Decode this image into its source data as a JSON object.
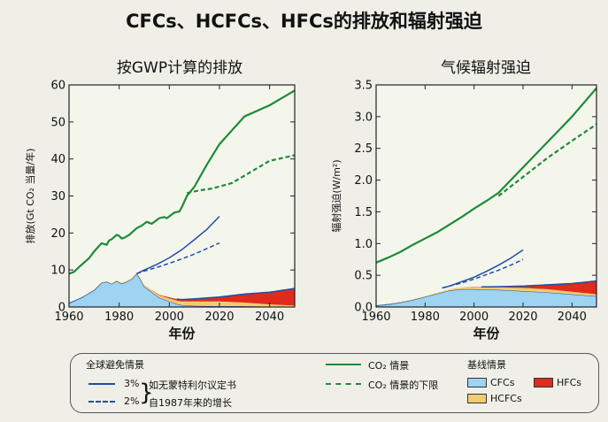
{
  "title": "CFCs、HCFCs、HFCs的排放和辐射强迫",
  "colors": {
    "plot_bg": "#f4f6ec",
    "co2": "#1e8a3a",
    "cfcs": "#9ed3f2",
    "hcfcs": "#f2cc70",
    "hfcs": "#e02a1c",
    "proj": "#1f4ea8"
  },
  "legend": {
    "avoided_heading": "全球避免情景",
    "pct3": "3%",
    "pct2": "2%",
    "brace": "}",
    "montreal": "如无蒙特利尔议定书",
    "growth": "自1987年来的增长",
    "co2_scenario": "CO₂ 情景",
    "co2_lower": "CO₂ 情景的下限",
    "baseline_heading": "基线情景",
    "cfcs": "CFCs",
    "hfcs": "HFCs",
    "hcfcs": "HCFCs"
  },
  "chart_data": [
    {
      "type": "area",
      "title": "按GWP计算的排放",
      "xlabel": "年份",
      "ylabel": "排放(Gt CO₂ 当量/年)",
      "xlim": [
        1960,
        2050
      ],
      "ylim": [
        0,
        60
      ],
      "xticks": [
        1960,
        1980,
        2000,
        2020,
        2040
      ],
      "yticks": [
        0,
        10,
        20,
        30,
        40,
        50,
        60
      ],
      "xtick_labels": [
        "1960",
        "1980",
        "2000",
        "2020",
        "2040"
      ],
      "ytick_labels": [
        "0",
        "10",
        "20",
        "30",
        "40",
        "50",
        "60"
      ],
      "series": [
        {
          "name": "CO₂ 情景",
          "style": "solid",
          "color": "#1e8a3a",
          "x": [
            1960,
            1962,
            1964,
            1966,
            1968,
            1970,
            1972,
            1973,
            1975,
            1976,
            1977,
            1979,
            1980,
            1981,
            1982,
            1984,
            1986,
            1987,
            1989,
            1990,
            1991,
            1993,
            1994,
            1996,
            1998,
            1999,
            2000,
            2001,
            2002,
            2004,
            2005,
            2007,
            2010,
            2015,
            2020,
            2030,
            2040,
            2050
          ],
          "y": [
            9,
            9.5,
            10.8,
            12,
            13.2,
            15,
            16.5,
            17.2,
            16.8,
            18,
            18.3,
            19.5,
            19.2,
            18.5,
            18.7,
            19.5,
            20.7,
            21.3,
            22,
            22.5,
            23,
            22.5,
            23,
            24,
            24.3,
            24,
            24.5,
            25,
            25.5,
            25.8,
            27,
            30,
            32.5,
            38.5,
            44,
            51.5,
            54.5,
            58.5
          ]
        },
        {
          "name": "CO₂ 情景的下限",
          "style": "dashed",
          "color": "#1e8a3a",
          "x": [
            2007,
            2012,
            2017,
            2025,
            2030,
            2040,
            2050
          ],
          "y": [
            30.8,
            31.5,
            32,
            33.5,
            35.5,
            39.5,
            41
          ]
        },
        {
          "name": "3%",
          "style": "solid",
          "color": "#1f4ea8",
          "x": [
            1987,
            1990,
            1995,
            2000,
            2005,
            2010,
            2015,
            2020
          ],
          "y": [
            9,
            10,
            11.5,
            13.3,
            15.5,
            18.2,
            21,
            24.5
          ]
        },
        {
          "name": "2%",
          "style": "dashed",
          "color": "#1f4ea8",
          "x": [
            1987,
            1990,
            1995,
            2000,
            2005,
            2010,
            2015,
            2020
          ],
          "y": [
            9,
            9.7,
            10.7,
            11.8,
            13,
            14.3,
            15.8,
            17.3
          ]
        },
        {
          "name": "CFCs",
          "style": "area",
          "color": "#9ed3f2",
          "x": [
            1960,
            1965,
            1970,
            1973,
            1975,
            1977,
            1979,
            1981,
            1983,
            1985,
            1987,
            1988,
            1990,
            1992,
            1994,
            1996,
            1998,
            2000,
            2003,
            2005,
            2010,
            2020,
            2030,
            2040,
            2050
          ],
          "y": [
            1,
            2.5,
            4.5,
            6.5,
            6.8,
            6.2,
            7,
            6.3,
            6.8,
            7.5,
            9,
            8,
            5.5,
            4.5,
            3.5,
            2.5,
            2,
            1.5,
            0.8,
            0.5,
            0.3,
            0.2,
            0.2,
            0.1,
            0.1
          ]
        },
        {
          "name": "HCFCs",
          "style": "area",
          "color": "#f2cc70",
          "x": [
            1960,
            1970,
            1980,
            1990,
            2000,
            2005,
            2010,
            2020,
            2030,
            2040,
            2050
          ],
          "y": [
            0,
            0.1,
            0.2,
            0.4,
            0.8,
            1,
            1.2,
            1.3,
            1,
            0.6,
            0.3
          ]
        },
        {
          "name": "HFCs",
          "style": "area",
          "color": "#e02a1c",
          "x": [
            1960,
            1990,
            1995,
            2000,
            2005,
            2010,
            2020,
            2030,
            2040,
            2050
          ],
          "y": [
            0,
            0,
            0.1,
            0.3,
            0.5,
            0.7,
            1.2,
            2.3,
            3.3,
            4.6
          ]
        }
      ]
    },
    {
      "type": "area",
      "title": "气候辐射强迫",
      "xlabel": "年份",
      "ylabel": "辐射强迫(W/m²)",
      "xlim": [
        1960,
        2050
      ],
      "ylim": [
        0,
        3.5
      ],
      "xticks": [
        1960,
        1980,
        2000,
        2020,
        2040
      ],
      "yticks": [
        0,
        0.5,
        1.0,
        1.5,
        2.0,
        2.5,
        3.0,
        3.5
      ],
      "xtick_labels": [
        "1960",
        "1980",
        "2000",
        "2020",
        "2040"
      ],
      "ytick_labels": [
        "0.0",
        "0.5",
        "1.0",
        "1.5",
        "2.0",
        "2.5",
        "3.0",
        "3.5"
      ],
      "series": [
        {
          "name": "CO₂ 情景",
          "style": "solid",
          "color": "#1e8a3a",
          "x": [
            1960,
            1965,
            1970,
            1975,
            1980,
            1985,
            1990,
            1995,
            2000,
            2005,
            2010,
            2020,
            2030,
            2040,
            2050
          ],
          "y": [
            0.7,
            0.78,
            0.87,
            0.98,
            1.08,
            1.18,
            1.3,
            1.42,
            1.55,
            1.67,
            1.8,
            2.2,
            2.6,
            3.0,
            3.45
          ]
        },
        {
          "name": "CO₂ 情景的下限",
          "style": "dashed",
          "color": "#1e8a3a",
          "x": [
            2010,
            2020,
            2030,
            2040,
            2050
          ],
          "y": [
            1.75,
            2.05,
            2.35,
            2.62,
            2.88
          ]
        },
        {
          "name": "3%",
          "style": "solid",
          "color": "#1f4ea8",
          "x": [
            1987,
            1990,
            1995,
            2000,
            2005,
            2010,
            2015,
            2020
          ],
          "y": [
            0.3,
            0.33,
            0.4,
            0.47,
            0.56,
            0.66,
            0.77,
            0.9
          ]
        },
        {
          "name": "2%",
          "style": "dashed",
          "color": "#1f4ea8",
          "x": [
            1987,
            1990,
            1995,
            2000,
            2005,
            2010,
            2015,
            2020
          ],
          "y": [
            0.3,
            0.33,
            0.38,
            0.44,
            0.51,
            0.58,
            0.66,
            0.75
          ]
        },
        {
          "name": "CFCs",
          "style": "area",
          "color": "#9ed3f2",
          "x": [
            1960,
            1965,
            1970,
            1975,
            1980,
            1985,
            1990,
            1995,
            2000,
            2010,
            2020,
            2030,
            2040,
            2050
          ],
          "y": [
            0.02,
            0.04,
            0.07,
            0.11,
            0.16,
            0.21,
            0.26,
            0.28,
            0.28,
            0.27,
            0.25,
            0.23,
            0.2,
            0.17
          ]
        },
        {
          "name": "HCFCs",
          "style": "area",
          "color": "#f2cc70",
          "x": [
            1960,
            1980,
            1990,
            2000,
            2010,
            2020,
            2030,
            2040,
            2050
          ],
          "y": [
            0,
            0.01,
            0.02,
            0.03,
            0.04,
            0.05,
            0.05,
            0.04,
            0.03
          ]
        },
        {
          "name": "HFCs",
          "style": "area",
          "color": "#e02a1c",
          "x": [
            1960,
            1990,
            2000,
            2010,
            2020,
            2030,
            2040,
            2050
          ],
          "y": [
            0,
            0,
            0.005,
            0.01,
            0.03,
            0.07,
            0.13,
            0.21
          ]
        }
      ]
    }
  ]
}
